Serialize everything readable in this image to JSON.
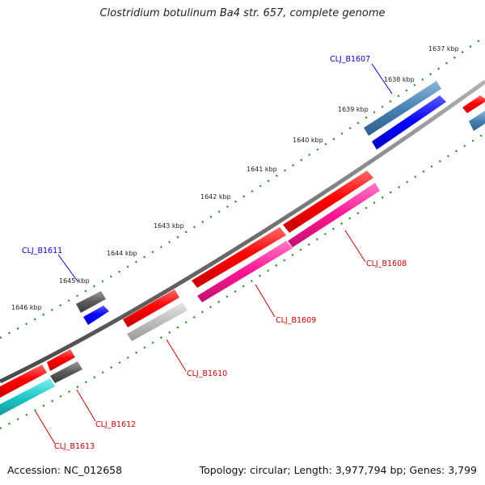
{
  "title": "Clostridium botulinum Ba4 str. 657, complete genome",
  "footer": {
    "accession": "Accession: NC_012658",
    "summary": "Topology: circular; Length: 3,977,794 bp; Genes: 3,799"
  },
  "ticks": [
    {
      "label": "1637 kbp",
      "pos": 1637
    },
    {
      "label": "1638 kbp",
      "pos": 1638
    },
    {
      "label": "1639 kbp",
      "pos": 1639
    },
    {
      "label": "1640 kbp",
      "pos": 1640
    },
    {
      "label": "1641 kbp",
      "pos": 1641
    },
    {
      "label": "1642 kbp",
      "pos": 1642
    },
    {
      "label": "1643 kbp",
      "pos": 1643
    },
    {
      "label": "1644 kbp",
      "pos": 1644
    },
    {
      "label": "1645 kbp",
      "pos": 1645
    },
    {
      "label": "1646 kbp",
      "pos": 1646
    }
  ],
  "genes": [
    {
      "name": "CLJ_B1607",
      "color": "#0000cc"
    },
    {
      "name": "CLJ_B1608",
      "color": "#cc0000"
    },
    {
      "name": "CLJ_B1609",
      "color": "#cc0000"
    },
    {
      "name": "CLJ_B1610",
      "color": "#cc0000"
    },
    {
      "name": "CLJ_B1611",
      "color": "#0000cc"
    },
    {
      "name": "CLJ_B1612",
      "color": "#cc0000"
    },
    {
      "name": "CLJ_B1613",
      "color": "#cc0000"
    }
  ]
}
